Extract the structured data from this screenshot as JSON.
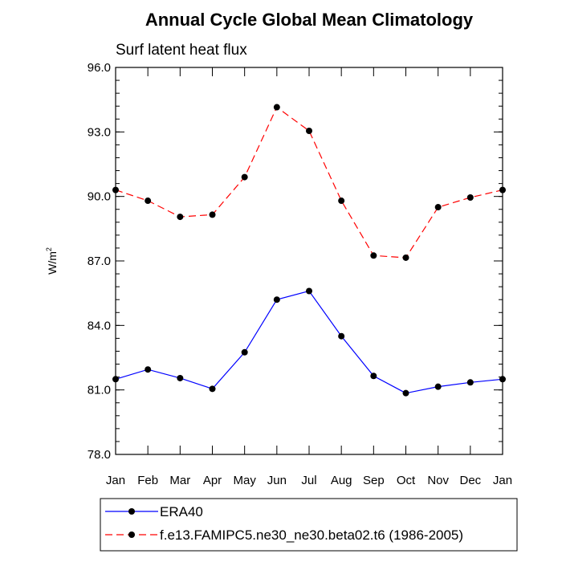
{
  "chart_data": {
    "type": "line",
    "title": "Annual Cycle Global Mean Climatology",
    "subtitle": "Surf latent heat flux",
    "ylabel_main": "W/m",
    "ylabel_sup": "2",
    "xlabel": "",
    "categories": [
      "Jan",
      "Feb",
      "Mar",
      "Apr",
      "May",
      "Jun",
      "Jul",
      "Aug",
      "Sep",
      "Oct",
      "Nov",
      "Dec",
      "Jan"
    ],
    "ylim": [
      78.0,
      96.0
    ],
    "yticks": [
      "78.0",
      "81.0",
      "84.0",
      "87.0",
      "90.0",
      "93.0",
      "96.0"
    ],
    "ytick_values": [
      78,
      81,
      84,
      87,
      90,
      93,
      96
    ],
    "grid": false,
    "legend_position": "bottom",
    "series": [
      {
        "name": "ERA40",
        "color": "#0000ff",
        "dash": "solid",
        "values": [
          81.5,
          81.95,
          81.55,
          81.05,
          82.75,
          85.2,
          85.6,
          83.5,
          81.65,
          80.85,
          81.15,
          81.35,
          81.5
        ]
      },
      {
        "name": "f.e13.FAMIPC5.ne30_ne30.beta02.t6 (1986-2005)",
        "color": "#ff0000",
        "dash": "dashed",
        "values": [
          90.3,
          89.8,
          89.05,
          89.15,
          90.9,
          94.15,
          93.05,
          89.8,
          87.25,
          87.15,
          89.5,
          89.95,
          90.3
        ]
      }
    ]
  }
}
